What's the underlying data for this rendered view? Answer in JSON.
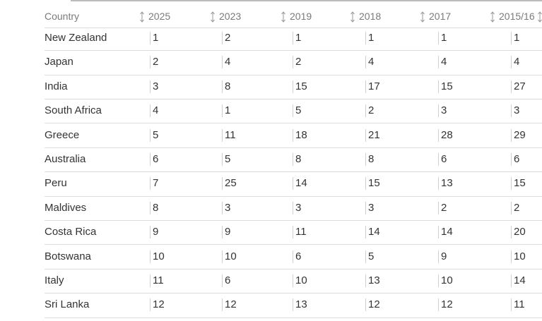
{
  "table": {
    "header": [
      "Country",
      "2025",
      "2023",
      "2019",
      "2018",
      "2017",
      "2015/16"
    ],
    "rows": [
      [
        "New Zealand",
        1,
        2,
        1,
        1,
        1,
        1
      ],
      [
        "Japan",
        2,
        4,
        2,
        4,
        4,
        4
      ],
      [
        "India",
        3,
        8,
        15,
        17,
        15,
        27
      ],
      [
        "South Africa",
        4,
        1,
        5,
        2,
        3,
        3
      ],
      [
        "Greece",
        5,
        11,
        18,
        21,
        28,
        29
      ],
      [
        "Australia",
        6,
        5,
        8,
        8,
        6,
        6
      ],
      [
        "Peru",
        7,
        25,
        14,
        15,
        13,
        15
      ],
      [
        "Maldives",
        8,
        3,
        3,
        3,
        2,
        2
      ],
      [
        "Costa Rica",
        9,
        9,
        11,
        14,
        14,
        20
      ],
      [
        "Botswana",
        10,
        10,
        6,
        5,
        9,
        10
      ],
      [
        "Italy",
        11,
        6,
        10,
        13,
        10,
        14
      ],
      [
        "Sri Lanka",
        12,
        12,
        13,
        12,
        12,
        11
      ]
    ]
  }
}
